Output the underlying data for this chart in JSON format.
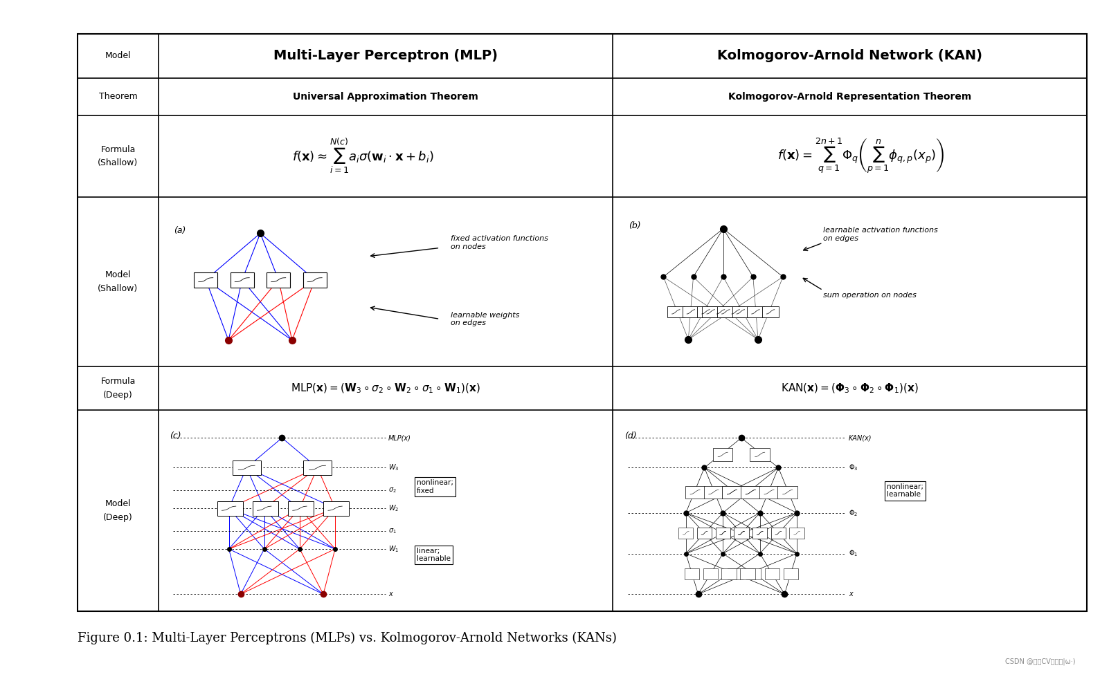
{
  "fig_width": 16.02,
  "fig_height": 9.82,
  "background_color": "#ffffff",
  "border_color": "#000000",
  "caption": "Figure 0.1: Multi-Layer Perceptrons (MLPs) vs. Kolmogorov-Arnold Networks (KANs)",
  "watermark": "CSDN @工大CV小王子|ω·)",
  "row_labels": [
    "Model",
    "Theorem",
    "Formula\n(Shallow)",
    "Model\n(Shallow)",
    "Formula\n(Deep)",
    "Model\n(Deep)"
  ],
  "col1_title": "Multi-Layer Perceptron (MLP)",
  "col2_title": "Kolmogorov-Arnold Network (KAN)",
  "theorem_mlp": "Universal Approximation Theorem",
  "theorem_kan": "Kolmogorov-Arnold Representation Theorem",
  "formula_shallow_mlp": "$f(\\mathbf{x}) \\approx \\sum_{i=1}^{N(c)} a_i \\sigma(\\mathbf{w}_i \\cdot \\mathbf{x} + b_i)$",
  "formula_shallow_kan": "$f(\\mathbf{x}) = \\sum_{q=1}^{2n+1} \\Phi_q \\left( \\sum_{p=1}^{n} \\phi_{q,p}(x_p) \\right)$",
  "formula_deep_mlp": "$\\mathrm{MLP}(\\mathbf{x}) = (\\mathbf{W}_3 \\circ \\sigma_2 \\circ \\mathbf{W}_2 \\circ \\sigma_1 \\circ \\mathbf{W}_1)(\\mathbf{x})$",
  "formula_deep_kan": "$\\mathrm{KAN}(\\mathbf{x}) = (\\mathbf{\\Phi}_3 \\circ \\mathbf{\\Phi}_2 \\circ \\mathbf{\\Phi}_1)(\\mathbf{x})$"
}
